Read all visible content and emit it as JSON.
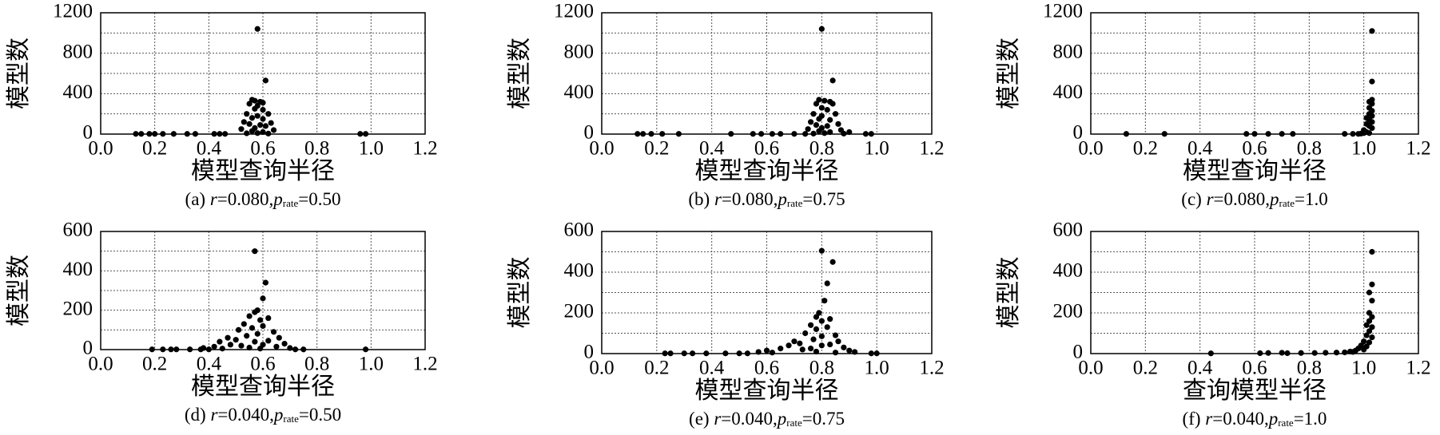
{
  "chart_data": [
    {
      "type": "scatter",
      "y_label": "模型数",
      "x_label": "模型查询半径",
      "caption": [
        "(a) ",
        "r",
        "=0.080,",
        "p",
        "rate",
        "=0.50"
      ],
      "color": "#000000",
      "grid": true,
      "xlim": [
        0,
        1.2
      ],
      "xticks": [
        {
          "value": 0,
          "label": "0.0"
        },
        0.2,
        0.4,
        0.6,
        0.8,
        {
          "value": 1,
          "label": "1.0"
        },
        1.2
      ],
      "ylim": [
        0,
        1200
      ],
      "yticks": [
        0,
        400,
        800,
        1200
      ],
      "ygrid": [
        200,
        600,
        1000
      ],
      "x": [
        0.13,
        0.15,
        0.18,
        0.2,
        0.23,
        0.27,
        0.32,
        0.35,
        0.42,
        0.44,
        0.46,
        0.96,
        0.98,
        0.58,
        0.61,
        0.56,
        0.57,
        0.59,
        0.55,
        0.6,
        0.58,
        0.57,
        0.6,
        0.54,
        0.62,
        0.58,
        0.56,
        0.6,
        0.53,
        0.63,
        0.55,
        0.59,
        0.61,
        0.57,
        0.52,
        0.64,
        0.56,
        0.6,
        0.58,
        0.62,
        0.54
      ],
      "values": [
        2,
        2,
        2,
        2,
        2,
        2,
        2,
        2,
        2,
        2,
        2,
        2,
        2,
        1040,
        530,
        340,
        330,
        320,
        300,
        310,
        280,
        250,
        240,
        200,
        200,
        180,
        160,
        150,
        120,
        110,
        100,
        90,
        80,
        60,
        50,
        40,
        30,
        20,
        10,
        5,
        8
      ]
    },
    {
      "type": "scatter",
      "y_label": "模型数",
      "x_label": "模型查询半径",
      "caption": [
        "(b) ",
        "r",
        "=0.080,",
        "p",
        "rate",
        "=0.75"
      ],
      "color": "#000000",
      "grid": true,
      "xlim": [
        0,
        1.2
      ],
      "xticks": [
        {
          "value": 0,
          "label": "0.0"
        },
        0.2,
        0.4,
        0.6,
        0.8,
        {
          "value": 1,
          "label": "1.0"
        },
        1.2
      ],
      "ylim": [
        0,
        1200
      ],
      "yticks": [
        0,
        400,
        800,
        1200
      ],
      "ygrid": [
        200,
        600,
        1000
      ],
      "x": [
        0.13,
        0.15,
        0.18,
        0.22,
        0.28,
        0.47,
        0.55,
        0.58,
        0.62,
        0.65,
        0.7,
        0.74,
        0.96,
        0.98,
        0.8,
        0.84,
        0.79,
        0.81,
        0.83,
        0.78,
        0.84,
        0.8,
        0.82,
        0.77,
        0.85,
        0.8,
        0.79,
        0.83,
        0.76,
        0.86,
        0.78,
        0.82,
        0.8,
        0.75,
        0.87,
        0.79,
        0.83,
        0.81,
        0.77,
        0.9,
        0.88
      ],
      "values": [
        2,
        2,
        2,
        2,
        2,
        2,
        2,
        2,
        2,
        2,
        2,
        2,
        2,
        2,
        1040,
        530,
        340,
        330,
        320,
        300,
        300,
        260,
        240,
        200,
        200,
        180,
        150,
        140,
        120,
        100,
        90,
        80,
        60,
        50,
        40,
        30,
        20,
        10,
        5,
        20,
        5
      ]
    },
    {
      "type": "scatter",
      "y_label": "模型数",
      "x_label": "模型查询半径",
      "caption": [
        "(c) ",
        "r",
        "=0.080,",
        "p",
        "rate",
        "=1.0"
      ],
      "color": "#000000",
      "grid": true,
      "xlim": [
        0,
        1.2
      ],
      "xticks": [
        {
          "value": 0,
          "label": "0.0"
        },
        0.2,
        0.4,
        0.6,
        0.8,
        {
          "value": 1,
          "label": "1.0"
        },
        1.2
      ],
      "ylim": [
        0,
        1200
      ],
      "yticks": [
        0,
        400,
        800,
        1200
      ],
      "ygrid": [
        200,
        600,
        1000
      ],
      "x": [
        0.13,
        0.27,
        0.57,
        0.6,
        0.65,
        0.7,
        0.74,
        0.93,
        0.96,
        0.98,
        1.03,
        1.03,
        1.03,
        1.02,
        1.03,
        1.02,
        1.03,
        1.02,
        1.03,
        1.01,
        1.02,
        1.03,
        1.01,
        1.02,
        1.03,
        1.0,
        1.01,
        1.02,
        0.99,
        1.0
      ],
      "values": [
        2,
        2,
        2,
        2,
        2,
        2,
        2,
        2,
        2,
        2,
        1020,
        520,
        340,
        320,
        300,
        260,
        230,
        200,
        180,
        160,
        140,
        120,
        100,
        80,
        60,
        40,
        20,
        10,
        5,
        10
      ]
    },
    {
      "type": "scatter",
      "y_label": "模型数",
      "x_label": "模型查询半径",
      "caption": [
        "(d) ",
        "r",
        "=0.040,",
        "p",
        "rate",
        "=0.50"
      ],
      "color": "#000000",
      "grid": true,
      "xlim": [
        0,
        1.2
      ],
      "xticks": [
        {
          "value": 0,
          "label": "0.0"
        },
        0.2,
        0.4,
        0.6,
        0.8,
        {
          "value": 1,
          "label": "1.0"
        },
        1.2
      ],
      "ylim": [
        0,
        600
      ],
      "yticks": [
        0,
        200,
        400,
        600
      ],
      "ygrid": [
        100,
        300,
        500
      ],
      "x": [
        0.19,
        0.23,
        0.26,
        0.28,
        0.33,
        0.37,
        0.4,
        0.72,
        0.75,
        0.98,
        0.57,
        0.61,
        0.6,
        0.58,
        0.57,
        0.55,
        0.62,
        0.59,
        0.53,
        0.6,
        0.56,
        0.51,
        0.64,
        0.58,
        0.54,
        0.47,
        0.66,
        0.5,
        0.62,
        0.44,
        0.57,
        0.68,
        0.48,
        0.6,
        0.42,
        0.52,
        0.65,
        0.38,
        0.55,
        0.7,
        0.45,
        0.59
      ],
      "values": [
        1,
        1,
        1,
        1,
        1,
        1,
        1,
        1,
        1,
        1,
        500,
        340,
        260,
        200,
        190,
        170,
        160,
        150,
        130,
        120,
        110,
        100,
        90,
        80,
        70,
        60,
        60,
        50,
        45,
        40,
        40,
        30,
        25,
        25,
        15,
        20,
        15,
        8,
        10,
        8,
        5,
        5
      ]
    },
    {
      "type": "scatter",
      "y_label": "模型数",
      "x_label": "模型查询半径",
      "caption": [
        "(e) ",
        "r",
        "=0.040,",
        "p",
        "rate",
        "=0.75"
      ],
      "color": "#000000",
      "grid": true,
      "xlim": [
        0,
        1.2
      ],
      "xticks": [
        {
          "value": 0,
          "label": "0.0"
        },
        0.2,
        0.4,
        0.6,
        0.8,
        {
          "value": 1,
          "label": "1.0"
        },
        1.2
      ],
      "ylim": [
        0,
        600
      ],
      "yticks": [
        0,
        200,
        400,
        600
      ],
      "ygrid": [
        100,
        300,
        500
      ],
      "x": [
        0.23,
        0.25,
        0.3,
        0.33,
        0.38,
        0.45,
        0.5,
        0.53,
        0.98,
        1.0,
        0.8,
        0.84,
        0.82,
        0.81,
        0.79,
        0.78,
        0.83,
        0.8,
        0.76,
        0.82,
        0.78,
        0.74,
        0.85,
        0.8,
        0.77,
        0.7,
        0.86,
        0.72,
        0.83,
        0.68,
        0.8,
        0.88,
        0.65,
        0.76,
        0.6,
        0.73,
        0.9,
        0.57,
        0.78,
        0.92,
        0.62,
        0.85
      ],
      "values": [
        1,
        1,
        1,
        1,
        1,
        1,
        1,
        1,
        1,
        1,
        505,
        450,
        345,
        260,
        200,
        180,
        170,
        160,
        140,
        130,
        120,
        100,
        90,
        85,
        70,
        60,
        60,
        50,
        45,
        40,
        40,
        30,
        25,
        25,
        15,
        20,
        15,
        8,
        10,
        8,
        5,
        5
      ]
    },
    {
      "type": "scatter",
      "y_label": "模型数",
      "x_label": "查询模型半径",
      "caption": [
        "(f) ",
        "r",
        "=0.040,",
        "p",
        "rate",
        "=1.0"
      ],
      "color": "#000000",
      "grid": true,
      "xlim": [
        0,
        1.2
      ],
      "xticks": [
        {
          "value": 0,
          "label": "0.0"
        },
        0.2,
        0.4,
        0.6,
        0.8,
        {
          "value": 1,
          "label": "1.0"
        },
        1.2
      ],
      "ylim": [
        0,
        600
      ],
      "yticks": [
        0,
        200,
        400,
        600
      ],
      "ygrid": [
        100,
        300,
        500
      ],
      "x": [
        0.44,
        0.62,
        0.65,
        0.7,
        0.72,
        0.77,
        0.82,
        0.86,
        0.9,
        0.93,
        0.96,
        1.03,
        1.03,
        1.02,
        1.03,
        1.02,
        1.03,
        1.02,
        1.01,
        1.03,
        1.02,
        1.01,
        1.03,
        1.0,
        1.02,
        0.99,
        1.01,
        0.98,
        1.0,
        0.97,
        0.95
      ],
      "values": [
        1,
        2,
        3,
        4,
        2,
        3,
        3,
        4,
        5,
        6,
        8,
        500,
        340,
        300,
        260,
        200,
        180,
        160,
        140,
        130,
        110,
        90,
        80,
        60,
        55,
        40,
        35,
        25,
        20,
        15,
        10
      ]
    }
  ]
}
